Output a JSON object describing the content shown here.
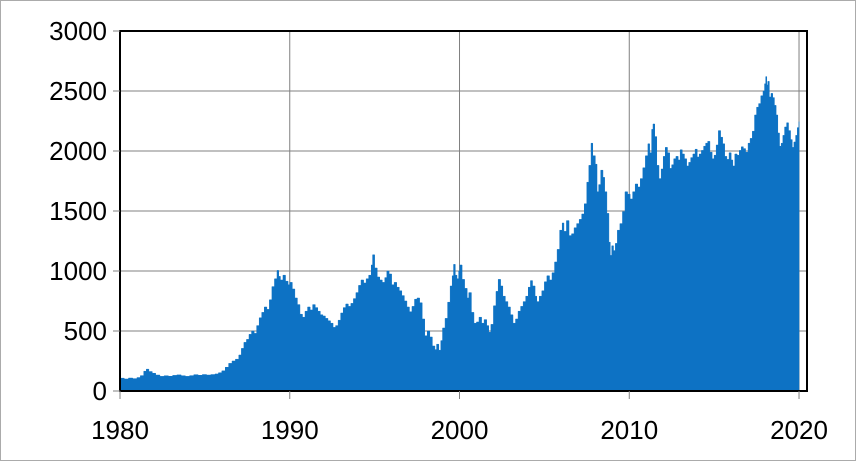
{
  "figure": {
    "background": "#ffffff",
    "border_color": "#ababab"
  },
  "chart_data": {
    "type": "area",
    "title": "",
    "xlabel": "",
    "ylabel": "",
    "xlim": [
      1980,
      2020.47
    ],
    "ylim": [
      0,
      3000
    ],
    "xticks": [
      1980,
      1990,
      2000,
      2010,
      2020
    ],
    "xtick_labels": [
      "1980",
      "1990",
      "2000",
      "2010",
      "2020"
    ],
    "yticks": [
      0,
      500,
      1000,
      1500,
      2000,
      2500,
      3000
    ],
    "ytick_labels": [
      "0",
      "500",
      "1000",
      "1500",
      "2000",
      "2500",
      "3000"
    ],
    "grid": {
      "horizontal": true,
      "vertical": true,
      "color": "#808080"
    },
    "axis_color": "#000000",
    "tick_color": "#808080",
    "label_color": "#000000",
    "legend": null,
    "series": [
      {
        "name": "",
        "fill_color": "#0d72c4",
        "points": [
          [
            1980.0,
            107
          ],
          [
            1980.25,
            100
          ],
          [
            1980.5,
            108
          ],
          [
            1980.75,
            103
          ],
          [
            1981.0,
            112
          ],
          [
            1981.2,
            128
          ],
          [
            1981.4,
            165
          ],
          [
            1981.55,
            182
          ],
          [
            1981.7,
            162
          ],
          [
            1981.9,
            148
          ],
          [
            1982.1,
            133
          ],
          [
            1982.35,
            122
          ],
          [
            1982.6,
            127
          ],
          [
            1982.85,
            123
          ],
          [
            1983.1,
            130
          ],
          [
            1983.35,
            134
          ],
          [
            1983.6,
            127
          ],
          [
            1983.85,
            122
          ],
          [
            1984.1,
            128
          ],
          [
            1984.35,
            136
          ],
          [
            1984.6,
            131
          ],
          [
            1984.85,
            137
          ],
          [
            1985.1,
            133
          ],
          [
            1985.35,
            137
          ],
          [
            1985.6,
            142
          ],
          [
            1985.8,
            152
          ],
          [
            1986.0,
            168
          ],
          [
            1986.2,
            198
          ],
          [
            1986.4,
            230
          ],
          [
            1986.6,
            250
          ],
          [
            1986.8,
            265
          ],
          [
            1987.0,
            300
          ],
          [
            1987.15,
            355
          ],
          [
            1987.3,
            405
          ],
          [
            1987.45,
            430
          ],
          [
            1987.6,
            472
          ],
          [
            1987.75,
            500
          ],
          [
            1987.9,
            480
          ],
          [
            1988.05,
            545
          ],
          [
            1988.2,
            610
          ],
          [
            1988.35,
            655
          ],
          [
            1988.5,
            700
          ],
          [
            1988.65,
            680
          ],
          [
            1988.8,
            760
          ],
          [
            1988.95,
            870
          ],
          [
            1989.1,
            935
          ],
          [
            1989.25,
            1005
          ],
          [
            1989.35,
            955
          ],
          [
            1989.45,
            925
          ],
          [
            1989.6,
            965
          ],
          [
            1989.75,
            915
          ],
          [
            1989.9,
            885
          ],
          [
            1990.0,
            905
          ],
          [
            1990.15,
            850
          ],
          [
            1990.3,
            775
          ],
          [
            1990.45,
            720
          ],
          [
            1990.6,
            640
          ],
          [
            1990.75,
            615
          ],
          [
            1990.9,
            665
          ],
          [
            1991.05,
            700
          ],
          [
            1991.2,
            675
          ],
          [
            1991.35,
            720
          ],
          [
            1991.5,
            695
          ],
          [
            1991.65,
            665
          ],
          [
            1991.8,
            635
          ],
          [
            1991.95,
            625
          ],
          [
            1992.1,
            605
          ],
          [
            1992.25,
            585
          ],
          [
            1992.4,
            565
          ],
          [
            1992.55,
            530
          ],
          [
            1992.7,
            545
          ],
          [
            1992.85,
            590
          ],
          [
            1993.0,
            650
          ],
          [
            1993.15,
            695
          ],
          [
            1993.3,
            725
          ],
          [
            1993.45,
            705
          ],
          [
            1993.6,
            730
          ],
          [
            1993.75,
            770
          ],
          [
            1993.9,
            820
          ],
          [
            1994.05,
            880
          ],
          [
            1994.2,
            925
          ],
          [
            1994.35,
            900
          ],
          [
            1994.5,
            935
          ],
          [
            1994.65,
            965
          ],
          [
            1994.8,
            1050
          ],
          [
            1994.88,
            1135
          ],
          [
            1995.0,
            1025
          ],
          [
            1995.15,
            950
          ],
          [
            1995.3,
            925
          ],
          [
            1995.45,
            905
          ],
          [
            1995.6,
            945
          ],
          [
            1995.72,
            1000
          ],
          [
            1995.85,
            975
          ],
          [
            1996.0,
            885
          ],
          [
            1996.15,
            905
          ],
          [
            1996.3,
            865
          ],
          [
            1996.45,
            835
          ],
          [
            1996.6,
            795
          ],
          [
            1996.75,
            750
          ],
          [
            1996.9,
            700
          ],
          [
            1997.05,
            660
          ],
          [
            1997.2,
            705
          ],
          [
            1997.35,
            765
          ],
          [
            1997.5,
            775
          ],
          [
            1997.65,
            735
          ],
          [
            1997.8,
            600
          ],
          [
            1997.95,
            460
          ],
          [
            1998.1,
            500
          ],
          [
            1998.25,
            450
          ],
          [
            1998.4,
            375
          ],
          [
            1998.55,
            345
          ],
          [
            1998.65,
            390
          ],
          [
            1998.78,
            340
          ],
          [
            1998.9,
            420
          ],
          [
            1999.0,
            525
          ],
          [
            1999.15,
            605
          ],
          [
            1999.3,
            740
          ],
          [
            1999.45,
            875
          ],
          [
            1999.57,
            960
          ],
          [
            1999.65,
            1055
          ],
          [
            1999.75,
            965
          ],
          [
            1999.85,
            935
          ],
          [
            1999.95,
            1000
          ],
          [
            2000.02,
            1050
          ],
          [
            2000.15,
            930
          ],
          [
            2000.3,
            855
          ],
          [
            2000.45,
            775
          ],
          [
            2000.55,
            820
          ],
          [
            2000.7,
            655
          ],
          [
            2000.85,
            565
          ],
          [
            2001.0,
            575
          ],
          [
            2001.15,
            615
          ],
          [
            2001.3,
            565
          ],
          [
            2001.45,
            595
          ],
          [
            2001.6,
            545
          ],
          [
            2001.72,
            490
          ],
          [
            2001.85,
            555
          ],
          [
            2002.0,
            710
          ],
          [
            2002.15,
            830
          ],
          [
            2002.28,
            930
          ],
          [
            2002.42,
            875
          ],
          [
            2002.55,
            790
          ],
          [
            2002.7,
            745
          ],
          [
            2002.85,
            700
          ],
          [
            2003.0,
            635
          ],
          [
            2003.15,
            565
          ],
          [
            2003.3,
            600
          ],
          [
            2003.45,
            665
          ],
          [
            2003.6,
            705
          ],
          [
            2003.75,
            745
          ],
          [
            2003.9,
            790
          ],
          [
            2004.05,
            865
          ],
          [
            2004.18,
            920
          ],
          [
            2004.3,
            875
          ],
          [
            2004.45,
            790
          ],
          [
            2004.55,
            745
          ],
          [
            2004.7,
            790
          ],
          [
            2004.85,
            835
          ],
          [
            2005.0,
            910
          ],
          [
            2005.15,
            960
          ],
          [
            2005.3,
            925
          ],
          [
            2005.45,
            985
          ],
          [
            2005.6,
            1075
          ],
          [
            2005.75,
            1180
          ],
          [
            2005.9,
            1340
          ],
          [
            2006.05,
            1400
          ],
          [
            2006.15,
            1330
          ],
          [
            2006.3,
            1420
          ],
          [
            2006.45,
            1295
          ],
          [
            2006.6,
            1310
          ],
          [
            2006.75,
            1360
          ],
          [
            2006.9,
            1395
          ],
          [
            2007.05,
            1430
          ],
          [
            2007.2,
            1475
          ],
          [
            2007.35,
            1560
          ],
          [
            2007.5,
            1740
          ],
          [
            2007.62,
            1880
          ],
          [
            2007.75,
            2065
          ],
          [
            2007.85,
            1960
          ],
          [
            2008.0,
            1890
          ],
          [
            2008.1,
            1660
          ],
          [
            2008.2,
            1720
          ],
          [
            2008.32,
            1840
          ],
          [
            2008.45,
            1780
          ],
          [
            2008.55,
            1660
          ],
          [
            2008.68,
            1480
          ],
          [
            2008.8,
            1240
          ],
          [
            2008.88,
            1130
          ],
          [
            2008.97,
            1210
          ],
          [
            2009.07,
            1170
          ],
          [
            2009.18,
            1230
          ],
          [
            2009.3,
            1340
          ],
          [
            2009.45,
            1395
          ],
          [
            2009.6,
            1495
          ],
          [
            2009.75,
            1660
          ],
          [
            2009.9,
            1640
          ],
          [
            2010.05,
            1600
          ],
          [
            2010.2,
            1660
          ],
          [
            2010.35,
            1725
          ],
          [
            2010.5,
            1700
          ],
          [
            2010.65,
            1770
          ],
          [
            2010.8,
            1860
          ],
          [
            2010.95,
            1960
          ],
          [
            2011.1,
            2060
          ],
          [
            2011.2,
            1985
          ],
          [
            2011.32,
            2180
          ],
          [
            2011.4,
            2225
          ],
          [
            2011.5,
            2120
          ],
          [
            2011.62,
            1880
          ],
          [
            2011.75,
            1770
          ],
          [
            2011.88,
            1850
          ],
          [
            2012.0,
            1955
          ],
          [
            2012.12,
            2030
          ],
          [
            2012.25,
            1985
          ],
          [
            2012.38,
            1855
          ],
          [
            2012.5,
            1885
          ],
          [
            2012.62,
            1935
          ],
          [
            2012.75,
            1955
          ],
          [
            2012.88,
            1925
          ],
          [
            2013.0,
            2010
          ],
          [
            2013.12,
            1975
          ],
          [
            2013.25,
            1935
          ],
          [
            2013.38,
            1875
          ],
          [
            2013.5,
            1905
          ],
          [
            2013.62,
            1945
          ],
          [
            2013.75,
            1975
          ],
          [
            2013.88,
            2015
          ],
          [
            2014.0,
            1950
          ],
          [
            2014.12,
            1975
          ],
          [
            2014.25,
            2005
          ],
          [
            2014.38,
            2040
          ],
          [
            2014.5,
            2065
          ],
          [
            2014.62,
            2080
          ],
          [
            2014.75,
            1990
          ],
          [
            2014.88,
            1935
          ],
          [
            2015.0,
            1965
          ],
          [
            2015.12,
            2050
          ],
          [
            2015.25,
            2170
          ],
          [
            2015.38,
            2115
          ],
          [
            2015.5,
            2060
          ],
          [
            2015.62,
            1955
          ],
          [
            2015.75,
            1930
          ],
          [
            2015.88,
            1985
          ],
          [
            2016.0,
            1925
          ],
          [
            2016.1,
            1875
          ],
          [
            2016.22,
            1975
          ],
          [
            2016.35,
            1965
          ],
          [
            2016.48,
            2005
          ],
          [
            2016.6,
            2035
          ],
          [
            2016.72,
            2020
          ],
          [
            2016.85,
            1990
          ],
          [
            2017.0,
            2065
          ],
          [
            2017.12,
            2105
          ],
          [
            2017.25,
            2165
          ],
          [
            2017.38,
            2300
          ],
          [
            2017.5,
            2365
          ],
          [
            2017.62,
            2395
          ],
          [
            2017.75,
            2460
          ],
          [
            2017.88,
            2500
          ],
          [
            2017.97,
            2560
          ],
          [
            2018.04,
            2620
          ],
          [
            2018.1,
            2550
          ],
          [
            2018.16,
            2580
          ],
          [
            2018.25,
            2450
          ],
          [
            2018.35,
            2480
          ],
          [
            2018.45,
            2445
          ],
          [
            2018.55,
            2380
          ],
          [
            2018.65,
            2300
          ],
          [
            2018.75,
            2150
          ],
          [
            2018.85,
            2040
          ],
          [
            2018.95,
            2065
          ],
          [
            2019.05,
            2130
          ],
          [
            2019.15,
            2200
          ],
          [
            2019.27,
            2235
          ],
          [
            2019.38,
            2170
          ],
          [
            2019.5,
            2095
          ],
          [
            2019.6,
            2030
          ],
          [
            2019.7,
            2075
          ],
          [
            2019.8,
            2130
          ],
          [
            2019.9,
            2195
          ],
          [
            2020.0,
            2245
          ]
        ]
      }
    ]
  }
}
